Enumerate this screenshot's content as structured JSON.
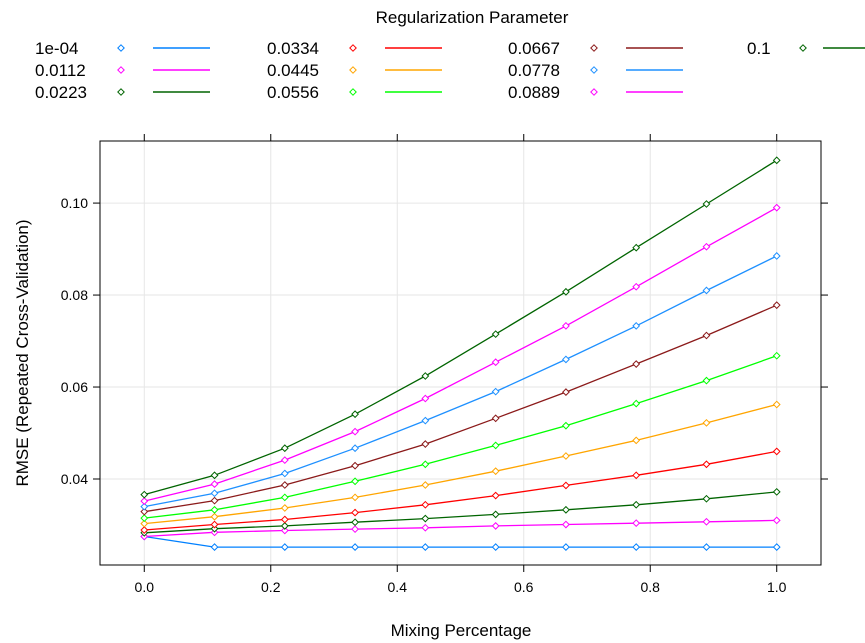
{
  "chart_data": {
    "type": "line",
    "title": "",
    "xlabel": "Mixing Percentage",
    "ylabel": "RMSE (Repeated Cross-Validation)",
    "xlim": [
      -0.07,
      1.07
    ],
    "ylim": [
      0.0213,
      0.1135
    ],
    "x_ticks": [
      0.0,
      0.2,
      0.4,
      0.6,
      0.8,
      1.0
    ],
    "x_tick_labels": [
      "0.0",
      "0.2",
      "0.4",
      "0.6",
      "0.8",
      "1.0"
    ],
    "y_ticks": [
      0.04,
      0.06,
      0.08,
      0.1
    ],
    "y_tick_labels": [
      "0.04",
      "0.06",
      "0.08",
      "0.10"
    ],
    "grid": true,
    "legend_title": "Regularization Parameter",
    "legend_position": "top",
    "x": [
      0,
      0.1111,
      0.2222,
      0.3333,
      0.4444,
      0.5556,
      0.6667,
      0.7778,
      0.8889,
      1.0
    ],
    "series": [
      {
        "name": "1e-04",
        "color": "#0080ff",
        "values": [
          0.0275,
          0.0252,
          0.0252,
          0.0252,
          0.0252,
          0.0252,
          0.0252,
          0.0252,
          0.0252,
          0.0252
        ]
      },
      {
        "name": "0.0112",
        "color": "#ff00ff",
        "values": [
          0.0275,
          0.0284,
          0.0288,
          0.0291,
          0.0294,
          0.0298,
          0.0301,
          0.0304,
          0.0307,
          0.031
        ]
      },
      {
        "name": "0.0223",
        "color": "#006400",
        "values": [
          0.0283,
          0.0292,
          0.0298,
          0.0306,
          0.0314,
          0.0323,
          0.0333,
          0.0344,
          0.0357,
          0.0372
        ]
      },
      {
        "name": "0.0334",
        "color": "#ff0000",
        "values": [
          0.0289,
          0.0301,
          0.0312,
          0.0327,
          0.0344,
          0.0364,
          0.0386,
          0.0408,
          0.0432,
          0.046
        ]
      },
      {
        "name": "0.0445",
        "color": "#ffa500",
        "values": [
          0.0303,
          0.0318,
          0.0337,
          0.036,
          0.0387,
          0.0417,
          0.045,
          0.0484,
          0.0522,
          0.0562
        ]
      },
      {
        "name": "0.0556",
        "color": "#00ff00",
        "values": [
          0.0315,
          0.0333,
          0.036,
          0.0395,
          0.0432,
          0.0473,
          0.0516,
          0.0564,
          0.0614,
          0.0668
        ]
      },
      {
        "name": "0.0667",
        "color": "#8b1a1a",
        "values": [
          0.0329,
          0.0353,
          0.0387,
          0.0429,
          0.0476,
          0.0532,
          0.0589,
          0.065,
          0.0712,
          0.0778
        ]
      },
      {
        "name": "0.0778",
        "color": "#1e90ff",
        "values": [
          0.034,
          0.0369,
          0.0412,
          0.0467,
          0.0527,
          0.059,
          0.066,
          0.0733,
          0.081,
          0.0885
        ]
      },
      {
        "name": "0.0889",
        "color": "#ff00ff",
        "values": [
          0.0352,
          0.0389,
          0.0441,
          0.0503,
          0.0575,
          0.0654,
          0.0733,
          0.0818,
          0.0905,
          0.099
        ]
      },
      {
        "name": "0.1",
        "color": "#006400",
        "values": [
          0.0366,
          0.0408,
          0.0467,
          0.0541,
          0.0624,
          0.0715,
          0.0807,
          0.0903,
          0.0998,
          0.1093
        ]
      }
    ]
  }
}
